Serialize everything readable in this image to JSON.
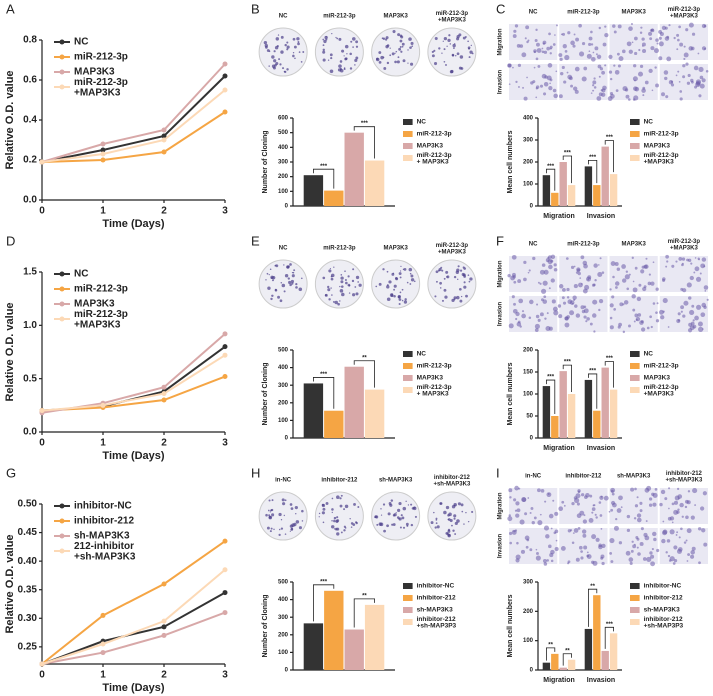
{
  "chart_data": [
    {
      "type": "line",
      "panel": "A",
      "xlabel": "Time (Days)",
      "ylabel": "Relative O.D. value",
      "x": [
        0,
        1,
        2,
        3
      ],
      "xlim": [
        0,
        3
      ],
      "xticks": [
        0,
        1,
        2,
        3
      ],
      "ylim": [
        0,
        0.8
      ],
      "yticks": [
        {
          "value": 0,
          "label": "0.0"
        },
        0.2,
        0.4,
        0.6,
        0.8
      ],
      "series": [
        {
          "name": "NC",
          "color": "#333333",
          "values": [
            0.19,
            0.25,
            0.32,
            0.62
          ]
        },
        {
          "name": "miR-212-3p",
          "color": "#f5a544",
          "values": [
            0.19,
            0.2,
            0.24,
            0.44
          ]
        },
        {
          "name": "MAP3K3",
          "color": "#d8a8a8",
          "values": [
            0.19,
            0.28,
            0.35,
            0.68
          ]
        },
        {
          "name": "miR-212-3p +MAP3K3",
          "color": "#fcd9b6",
          "values": [
            0.19,
            0.23,
            0.3,
            0.55
          ]
        }
      ]
    },
    {
      "type": "bar",
      "panel": "B",
      "ylabel": "Number of Cloning",
      "image_labels": [
        "NC",
        "miR-212-3p",
        "MAP3K3",
        "miR-212-3p +MAP3K3"
      ],
      "ylim": [
        0,
        600
      ],
      "yticks": [
        0,
        100,
        200,
        300,
        400,
        500,
        600
      ],
      "significance": [
        [
          "***",
          "***"
        ]
      ],
      "series": [
        {
          "name": "NC",
          "color": "#333333",
          "values": [
            210
          ]
        },
        {
          "name": "miR-212-3p",
          "color": "#f5a544",
          "values": [
            105
          ]
        },
        {
          "name": "MAP3K3",
          "color": "#d8a8a8",
          "values": [
            500
          ]
        },
        {
          "name": "miR-212-3p + MAP3K3",
          "color": "#fcd9b6",
          "values": [
            310
          ]
        }
      ]
    },
    {
      "type": "bar",
      "panel": "C",
      "ylabel": "Mean cell numbers",
      "image_labels": [
        "NC",
        "miR-212-3p",
        "MAP3K3",
        "miR-212-3p +MAP3K3"
      ],
      "image_row_labels": [
        "Migration",
        "Invasion"
      ],
      "categories": [
        "Migration",
        "Invasion"
      ],
      "ylim": [
        0,
        400
      ],
      "yticks": [
        0,
        100,
        200,
        300,
        400
      ],
      "significance": [
        [
          "***",
          "***"
        ],
        [
          "***",
          "***"
        ]
      ],
      "series": [
        {
          "name": "NC",
          "color": "#333333",
          "values": [
            140,
            180
          ]
        },
        {
          "name": "miR-212-3p",
          "color": "#f5a544",
          "values": [
            60,
            95
          ]
        },
        {
          "name": "MAP3K3",
          "color": "#d8a8a8",
          "values": [
            200,
            270
          ]
        },
        {
          "name": "miR-212-3p +MAP3K3",
          "color": "#fcd9b6",
          "values": [
            95,
            145
          ]
        }
      ]
    },
    {
      "type": "line",
      "panel": "D",
      "xlabel": "Time (Days)",
      "ylabel": "Relative O.D. value",
      "x": [
        0,
        1,
        2,
        3
      ],
      "xlim": [
        0,
        3
      ],
      "xticks": [
        0,
        1,
        2,
        3
      ],
      "ylim": [
        0,
        1.5
      ],
      "yticks": [
        {
          "value": 0,
          "label": "0.0"
        },
        0.5,
        {
          "value": 1,
          "label": "1.0"
        },
        1.5
      ],
      "series": [
        {
          "name": "NC",
          "color": "#333333",
          "values": [
            0.2,
            0.24,
            0.38,
            0.8
          ]
        },
        {
          "name": "miR-212-3p",
          "color": "#f5a544",
          "values": [
            0.2,
            0.23,
            0.3,
            0.52
          ]
        },
        {
          "name": "MAP3K3",
          "color": "#d8a8a8",
          "values": [
            0.18,
            0.27,
            0.42,
            0.92
          ]
        },
        {
          "name": "miR-212-3p +MAP3K3",
          "color": "#fcd9b6",
          "values": [
            0.2,
            0.25,
            0.36,
            0.72
          ]
        }
      ]
    },
    {
      "type": "bar",
      "panel": "E",
      "ylabel": "Number of Cloning",
      "image_labels": [
        "NC",
        "miR-212-3p",
        "MAP3K3",
        "miR-212-3p +MAP3K3"
      ],
      "ylim": [
        0,
        500
      ],
      "yticks": [
        0,
        100,
        200,
        300,
        400,
        500
      ],
      "significance": [
        [
          "***",
          "**"
        ]
      ],
      "series": [
        {
          "name": "NC",
          "color": "#333333",
          "values": [
            310
          ]
        },
        {
          "name": "miR-212-3p",
          "color": "#f5a544",
          "values": [
            155
          ]
        },
        {
          "name": "MAP3K3",
          "color": "#d8a8a8",
          "values": [
            405
          ]
        },
        {
          "name": "miR-212-3p + MAP3K3",
          "color": "#fcd9b6",
          "values": [
            275
          ]
        }
      ]
    },
    {
      "type": "bar",
      "panel": "F",
      "ylabel": "Mean cell numbers",
      "image_labels": [
        "NC",
        "miR-212-3p",
        "MAP3K3",
        "miR-212-3p +MAP3K3"
      ],
      "image_row_labels": [
        "Migration",
        "Invasion"
      ],
      "categories": [
        "Migration",
        "Invasion"
      ],
      "ylim": [
        0,
        200
      ],
      "yticks": [
        0,
        50,
        100,
        150,
        200
      ],
      "significance": [
        [
          "***",
          "***"
        ],
        [
          "***",
          "***"
        ]
      ],
      "series": [
        {
          "name": "NC",
          "color": "#333333",
          "values": [
            118,
            132
          ]
        },
        {
          "name": "miR-212-3p",
          "color": "#f5a544",
          "values": [
            50,
            62
          ]
        },
        {
          "name": "MAP3K3",
          "color": "#d8a8a8",
          "values": [
            152,
            160
          ]
        },
        {
          "name": "miR-212-3p +MAP3K3",
          "color": "#fcd9b6",
          "values": [
            100,
            110
          ]
        }
      ]
    },
    {
      "type": "line",
      "panel": "G",
      "xlabel": "Time (Days)",
      "ylabel": "Relative O.D. value",
      "x": [
        0,
        1,
        2,
        3
      ],
      "xlim": [
        0,
        3
      ],
      "xticks": [
        0,
        1,
        2,
        3
      ],
      "ylim": [
        0.22,
        0.5
      ],
      "yticks": [
        0.25,
        {
          "value": 0.3,
          "label": "0.30"
        },
        0.35,
        {
          "value": 0.4,
          "label": "0.40"
        },
        0.45,
        {
          "value": 0.5,
          "label": "0.50"
        }
      ],
      "series": [
        {
          "name": "inhibitor-NC",
          "color": "#333333",
          "values": [
            0.22,
            0.26,
            0.285,
            0.345
          ]
        },
        {
          "name": "inhibitor-212",
          "color": "#f5a544",
          "values": [
            0.22,
            0.305,
            0.36,
            0.435
          ]
        },
        {
          "name": "sh-MAP3K3",
          "color": "#d8a8a8",
          "values": [
            0.22,
            0.24,
            0.27,
            0.31
          ]
        },
        {
          "name": "212-inhibitor +sh-MAP3K3",
          "color": "#fcd9b6",
          "values": [
            0.22,
            0.255,
            0.295,
            0.385
          ]
        }
      ]
    },
    {
      "type": "bar",
      "panel": "H",
      "ylabel": "Number of Cloning",
      "image_labels": [
        "in-NC",
        "inhibitor-212",
        "sh-MAP3K3",
        "inhibitor-212 +sh-MAP3K3"
      ],
      "ylim": [
        0,
        500
      ],
      "yticks": [
        0,
        100,
        200,
        300,
        400,
        500
      ],
      "significance": [
        [
          "***",
          "**"
        ]
      ],
      "series": [
        {
          "name": "inhibitor-NC",
          "color": "#333333",
          "values": [
            265
          ]
        },
        {
          "name": "inhibitor-212",
          "color": "#f5a544",
          "values": [
            450
          ]
        },
        {
          "name": "sh-MAP3K3",
          "color": "#d8a8a8",
          "values": [
            230
          ]
        },
        {
          "name": "inhibitor-212 +sh-MAP3P3",
          "color": "#fcd9b6",
          "values": [
            370
          ]
        }
      ]
    },
    {
      "type": "bar",
      "panel": "I",
      "ylabel": "Mean cell numbers",
      "image_labels": [
        "in-NC",
        "inhibitor-212",
        "sh-MAP3K3",
        "inhibitor-212 +sh-MAP3K3"
      ],
      "image_row_labels": [
        "Migration",
        "Invasion"
      ],
      "categories": [
        "Migration",
        "Invasion"
      ],
      "ylim": [
        0,
        300
      ],
      "yticks": [
        0,
        100,
        200,
        300
      ],
      "significance": [
        [
          "**",
          "**"
        ],
        [
          "**",
          "***"
        ]
      ],
      "series": [
        {
          "name": "inhibitor-NC",
          "color": "#333333",
          "values": [
            25,
            140
          ]
        },
        {
          "name": "inhibitor-212",
          "color": "#f5a544",
          "values": [
            55,
            255
          ]
        },
        {
          "name": "sh-MAP3K3",
          "color": "#d8a8a8",
          "values": [
            8,
            65
          ]
        },
        {
          "name": "inhibitor-212 +sh-MAP3P3",
          "color": "#fcd9b6",
          "values": [
            35,
            125
          ]
        }
      ]
    }
  ]
}
